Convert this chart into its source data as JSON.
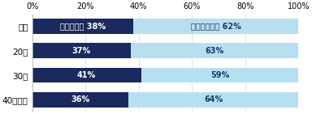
{
  "categories": [
    "全体",
    "20代",
    "30代",
    "40代以上"
  ],
  "changed": [
    38,
    37,
    41,
    36
  ],
  "unchanged": [
    62,
    63,
    59,
    64
  ],
  "color_changed": "#1a2a5e",
  "color_unchanged": "#b8dff0",
  "label_changed": [
    "変わった　 38%",
    "37%",
    "41%",
    "36%"
  ],
  "label_unchanged": [
    "変わらない　 62%",
    "63%",
    "59%",
    "64%"
  ],
  "xlim": [
    0,
    100
  ],
  "xticks": [
    0,
    20,
    40,
    60,
    80,
    100
  ],
  "xticklabels": [
    "0%",
    "20%",
    "40%",
    "60%",
    "80%",
    "100%"
  ],
  "bar_height": 0.62,
  "text_color_dark": "#ffffff",
  "text_color_light": "#1a3a6e",
  "fontsize_label": 7.0,
  "fontsize_tick": 7.0,
  "fontsize_ycat": 7.5
}
